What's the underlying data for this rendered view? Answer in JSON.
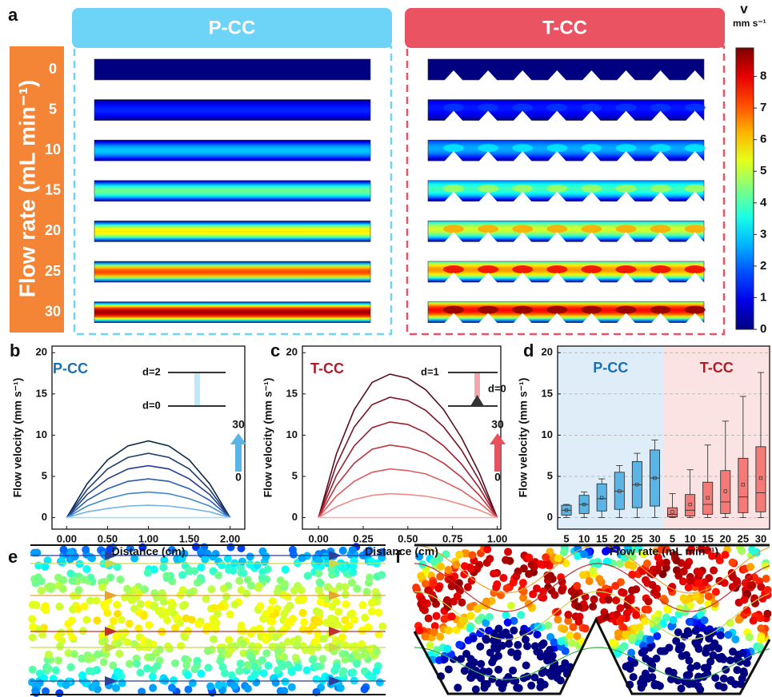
{
  "panel_a": {
    "label": "a",
    "groups": [
      "P-CC",
      "T-CC"
    ],
    "y_title": "Flow rate (mL min⁻¹)",
    "flow_rates": [
      0,
      5,
      10,
      15,
      20,
      25,
      30
    ]
  },
  "colorbar": {
    "label": "v",
    "unit": "mm s⁻¹",
    "lim": [
      0,
      8.9
    ],
    "ticks": [
      0,
      1,
      2,
      3,
      4,
      5,
      6,
      7,
      8
    ]
  },
  "chart_data": [
    {
      "type": "line",
      "panel": "b",
      "ylabel": "Flow velocity (mm s⁻¹)",
      "xlabel": "Distance (cm)",
      "xlim": [
        -0.18,
        2.18
      ],
      "ylim": [
        -1.4,
        20.8
      ],
      "xticks": [
        {
          "value": 0,
          "label": "0.00"
        },
        {
          "value": 0.5,
          "label": "0.50"
        },
        {
          "value": 1,
          "label": "1.00"
        },
        {
          "value": 1.5,
          "label": "1.50"
        },
        {
          "value": 2,
          "label": "2.00"
        }
      ],
      "yticks": [
        0,
        5,
        10,
        15,
        20
      ],
      "annotations": [
        "P-CC",
        "d=2",
        "d=0",
        "30",
        "0"
      ],
      "x": [
        0,
        0.25,
        0.5,
        0.75,
        1,
        1.25,
        1.5,
        1.75,
        2
      ],
      "series": [
        {
          "color": "#0b2a4a",
          "values": [
            0,
            4.1,
            7.0,
            8.7,
            9.3,
            8.7,
            7.0,
            4.1,
            0
          ]
        },
        {
          "color": "#1d3f6e",
          "values": [
            0,
            3.4,
            5.9,
            7.3,
            7.8,
            7.3,
            5.9,
            3.4,
            0
          ]
        },
        {
          "color": "#233c8f",
          "values": [
            0,
            2.8,
            4.7,
            5.9,
            6.3,
            5.9,
            4.7,
            2.8,
            0
          ]
        },
        {
          "color": "#2a5cb3",
          "values": [
            0,
            2.1,
            3.5,
            4.4,
            4.7,
            4.4,
            3.5,
            2.1,
            0
          ]
        },
        {
          "color": "#3f86cf",
          "values": [
            0,
            1.4,
            2.3,
            2.9,
            3.1,
            2.9,
            2.3,
            1.4,
            0
          ]
        },
        {
          "color": "#74b3e6",
          "values": [
            0,
            0.7,
            1.1,
            1.4,
            1.5,
            1.4,
            1.1,
            0.7,
            0
          ]
        },
        {
          "color": "#a9dbf7",
          "values": [
            0,
            0,
            0,
            0,
            0,
            0,
            0,
            0,
            0
          ]
        }
      ]
    },
    {
      "type": "line",
      "panel": "c",
      "ylabel": "Flow velocity (mm s⁻¹)",
      "xlabel": "Distance (cm)",
      "xlim": [
        -0.09,
        1.02
      ],
      "ylim": [
        -1.4,
        20.8
      ],
      "xticks": [
        {
          "value": 0,
          "label": "0.00"
        },
        {
          "value": 0.25,
          "label": "0.25"
        },
        {
          "value": 0.5,
          "label": "0.50"
        },
        {
          "value": 0.75,
          "label": "0.75"
        },
        {
          "value": 1,
          "label": "1.00"
        }
      ],
      "yticks": [
        0,
        5,
        10,
        15,
        20
      ],
      "annotations": [
        "T-CC",
        "d=1",
        "d=0",
        "30",
        "0"
      ],
      "x": [
        0,
        0.1,
        0.2,
        0.3,
        0.4,
        0.5,
        0.6,
        0.7,
        0.8,
        0.9,
        1
      ],
      "series": [
        {
          "color": "#5a0f1e",
          "values": [
            0,
            7.7,
            13.1,
            16.4,
            17.4,
            16.9,
            15.5,
            13.1,
            9.7,
            5.4,
            0
          ]
        },
        {
          "color": "#7a1626",
          "values": [
            0,
            6.4,
            11.0,
            13.7,
            14.6,
            14.2,
            13.0,
            11.0,
            8.2,
            4.5,
            0
          ]
        },
        {
          "color": "#9b1e2e",
          "values": [
            0,
            5.1,
            8.7,
            10.9,
            11.6,
            11.3,
            10.3,
            8.7,
            6.5,
            3.6,
            0
          ]
        },
        {
          "color": "#c0353f",
          "values": [
            0,
            3.9,
            6.6,
            8.3,
            8.8,
            8.5,
            7.8,
            6.6,
            4.9,
            2.7,
            0
          ]
        },
        {
          "color": "#de5a5e",
          "values": [
            0,
            2.6,
            4.4,
            5.5,
            5.9,
            5.7,
            5.3,
            4.4,
            3.3,
            1.8,
            0
          ]
        },
        {
          "color": "#ef8a88",
          "values": [
            0,
            1.3,
            2.2,
            2.7,
            2.9,
            2.8,
            2.6,
            2.2,
            1.6,
            0.9,
            0
          ]
        },
        {
          "color": "#f6b3b0",
          "values": [
            0,
            0,
            0,
            0,
            0,
            0,
            0,
            0,
            0,
            0,
            0
          ]
        }
      ]
    },
    {
      "type": "box",
      "panel": "d",
      "ylabel": "Flow velocity (mm s⁻¹)",
      "xlabel": "Flow rate (mL min⁻¹)",
      "ylim": [
        -1.4,
        20.8
      ],
      "yticks": [
        0,
        5,
        10,
        15,
        20
      ],
      "grid": true,
      "categories": [
        "5",
        "10",
        "15",
        "20",
        "25",
        "30"
      ],
      "series": [
        {
          "name": "P-CC",
          "color": "#5ab4e6",
          "shade": "#deedf8",
          "text_color": "#1a6fb5",
          "min": [
            0,
            0,
            0,
            0,
            0,
            0
          ],
          "q1": [
            0.3,
            0.5,
            0.8,
            1.0,
            1.2,
            1.4
          ],
          "median": [
            0.9,
            1.6,
            2.3,
            3.2,
            4.0,
            4.8
          ],
          "q3": [
            1.5,
            2.7,
            4.1,
            5.5,
            6.8,
            8.2
          ],
          "max": [
            1.6,
            3.1,
            4.7,
            6.3,
            7.8,
            9.4
          ],
          "mean": [
            0.9,
            1.6,
            2.4,
            3.2,
            4.0,
            4.8
          ]
        },
        {
          "name": "T-CC",
          "color": "#f37a76",
          "shade": "#fbe3e3",
          "text_color": "#b01c2a",
          "min": [
            0,
            0,
            0,
            0,
            0,
            0
          ],
          "q1": [
            0.1,
            0.2,
            0.4,
            0.5,
            0.6,
            0.7
          ],
          "median": [
            0.4,
            0.9,
            1.6,
            1.9,
            2.5,
            3.0
          ],
          "q3": [
            1.2,
            2.8,
            4.3,
            5.7,
            7.2,
            8.6
          ],
          "max": [
            2.9,
            5.8,
            8.8,
            11.7,
            14.7,
            17.6
          ],
          "mean": [
            0.7,
            1.6,
            2.4,
            3.2,
            4.0,
            4.8
          ]
        }
      ]
    }
  ],
  "panel_e": {
    "label": "e"
  },
  "panel_f": {
    "label": "f"
  }
}
